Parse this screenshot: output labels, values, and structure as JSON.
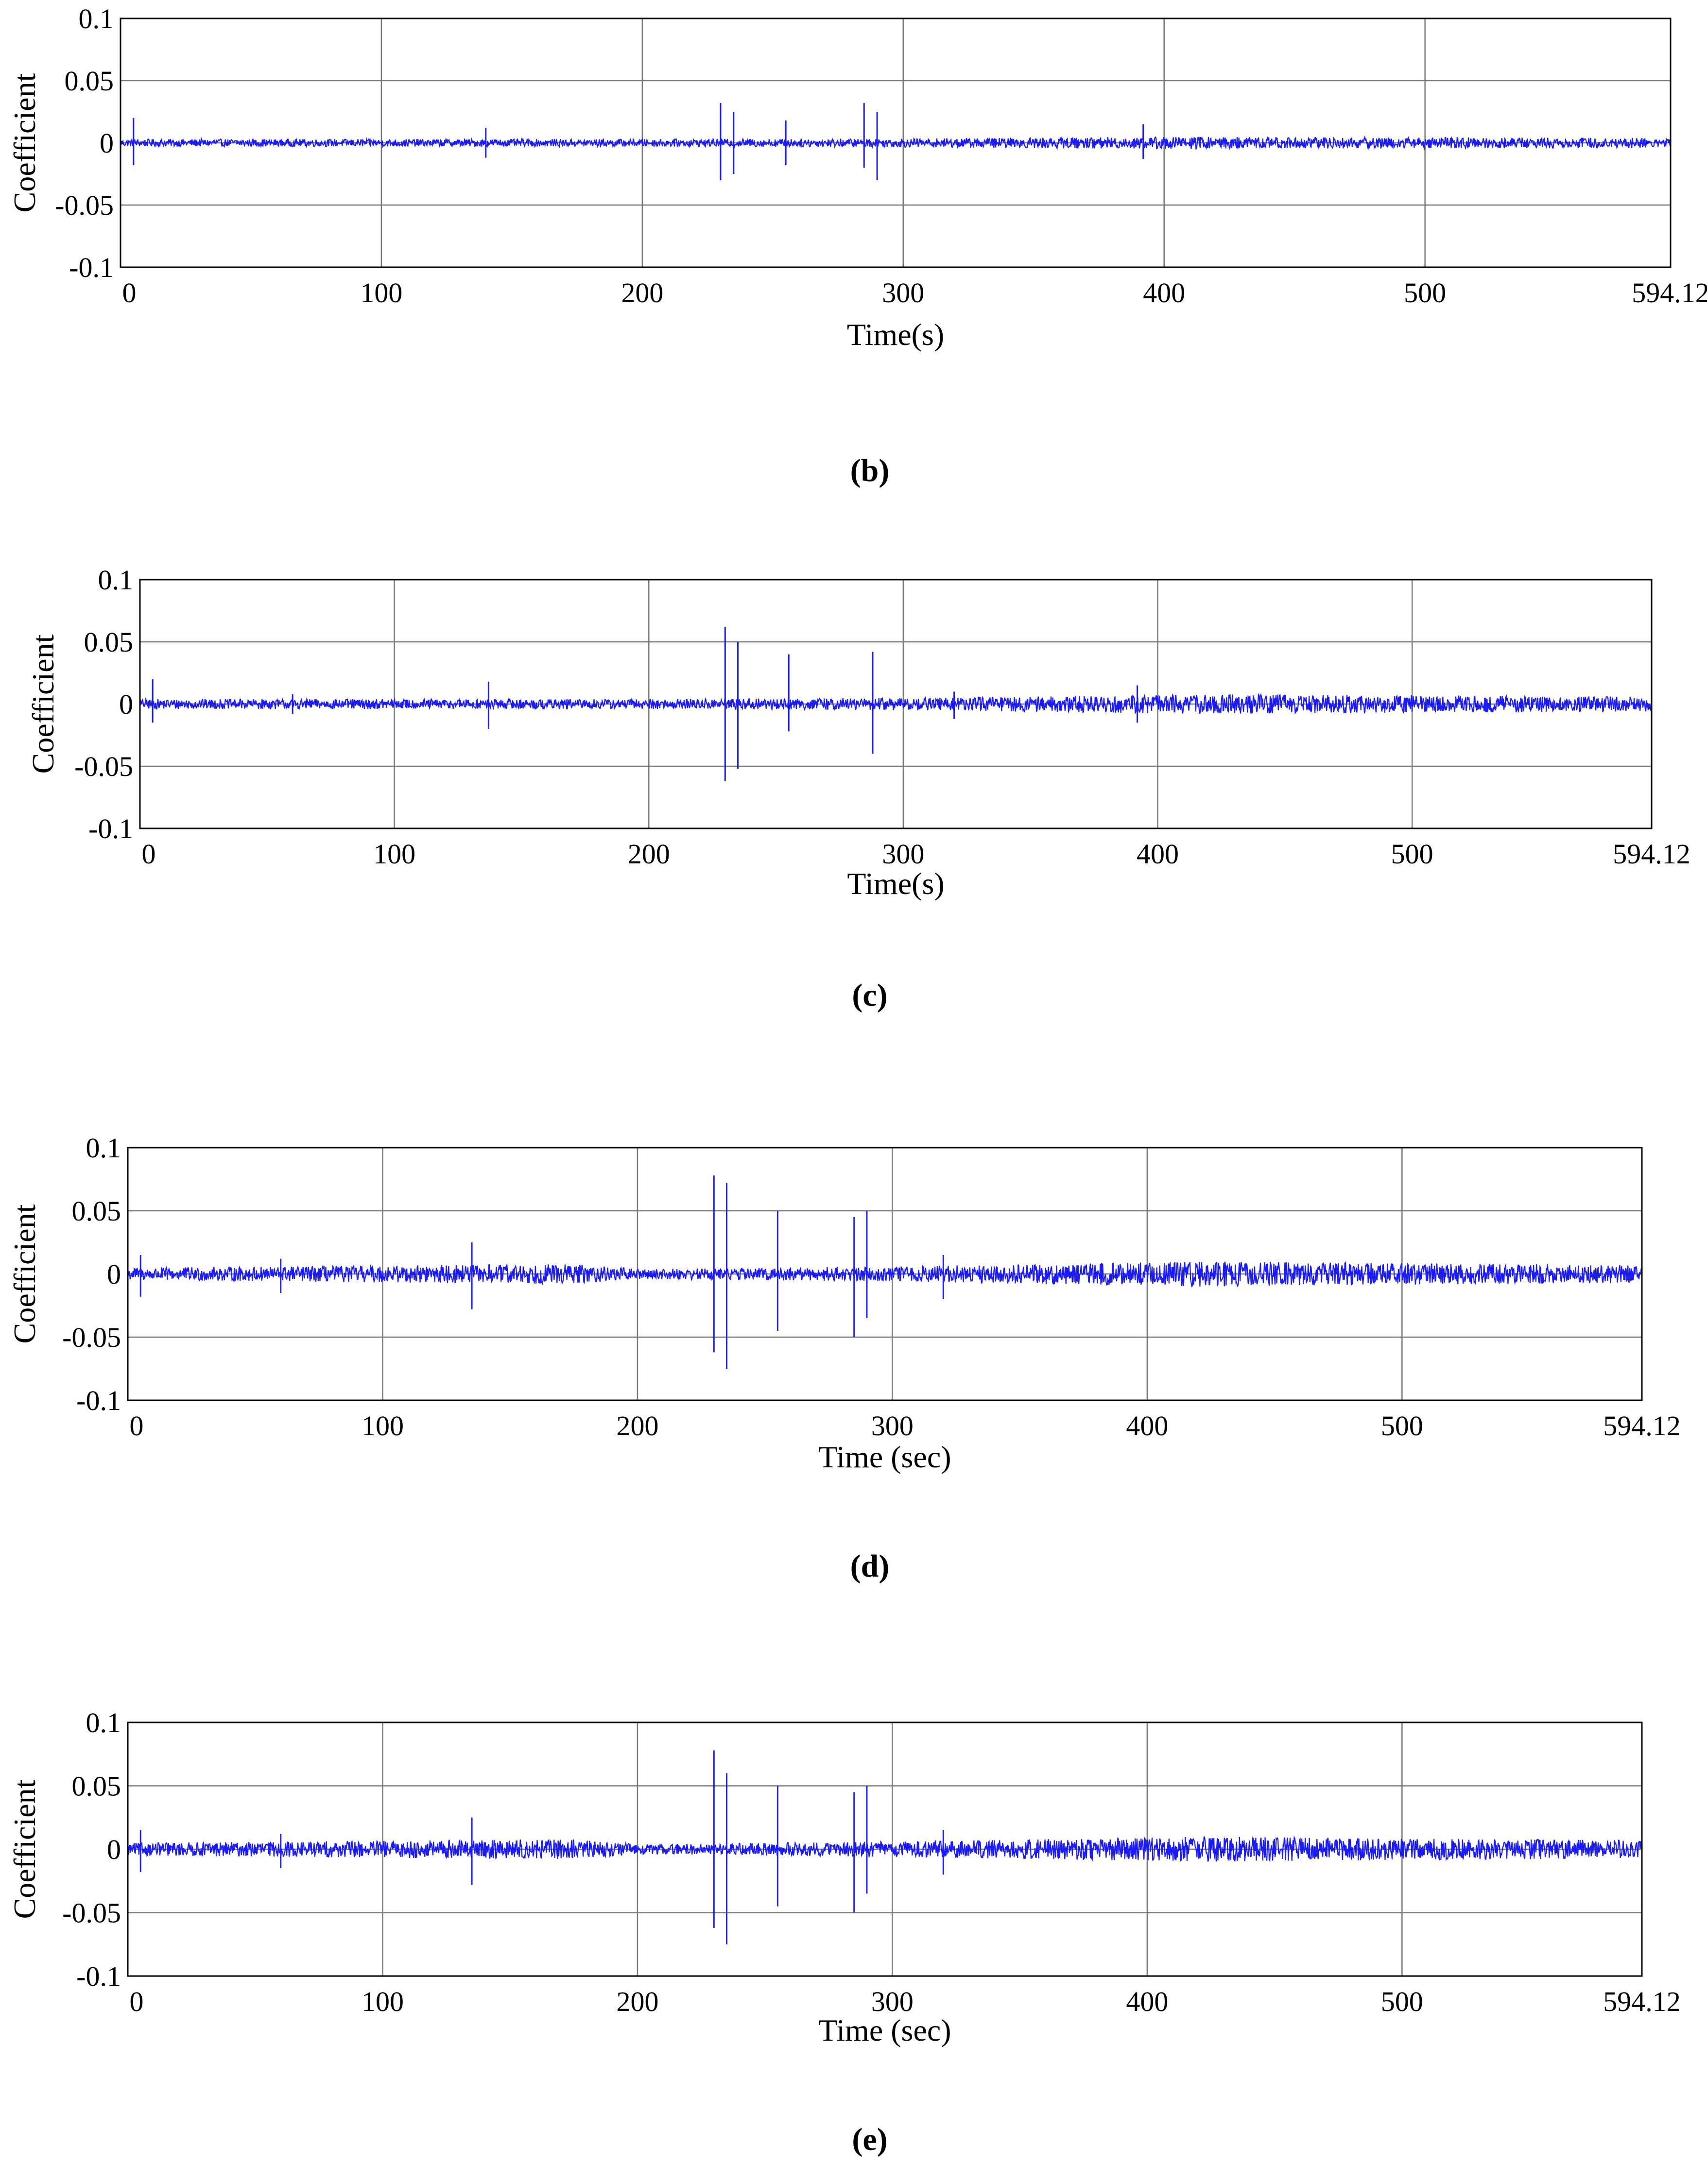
{
  "chart_data": [
    {
      "type": "line",
      "caption": "(b)",
      "xlabel": "Time(s)",
      "ylabel": "Coefficient",
      "xlim": [
        0,
        594.12
      ],
      "ylim": [
        -0.1,
        0.1
      ],
      "x_ticks": [
        "0",
        "100",
        "200",
        "300",
        "400",
        "500",
        "594.12"
      ],
      "y_ticks": [
        "0.1",
        "0.05",
        "0",
        "-0.05",
        "-0.1"
      ],
      "grid": true,
      "series_color": "#1a1aff",
      "noise_envelope": [
        [
          0,
          0.003
        ],
        [
          200,
          0.003
        ],
        [
          300,
          0.0035
        ],
        [
          400,
          0.005
        ],
        [
          594.12,
          0.004
        ]
      ],
      "spikes": [
        [
          5,
          0.02,
          -0.018
        ],
        [
          140,
          0.012,
          -0.012
        ],
        [
          230,
          0.032,
          -0.03
        ],
        [
          235,
          0.025,
          -0.025
        ],
        [
          255,
          0.018,
          -0.018
        ],
        [
          285,
          0.032,
          -0.02
        ],
        [
          290,
          0.025,
          -0.03
        ],
        [
          392,
          0.015,
          -0.013
        ]
      ]
    },
    {
      "type": "line",
      "caption": "(c)",
      "xlabel": "Time(s)",
      "ylabel": "Coefficient",
      "xlim": [
        0,
        594.12
      ],
      "ylim": [
        -0.1,
        0.1
      ],
      "x_ticks": [
        "0",
        "100",
        "200",
        "300",
        "400",
        "500",
        "594.12"
      ],
      "y_ticks": [
        "0.1",
        "0.05",
        "0",
        "-0.05",
        "-0.1"
      ],
      "grid": true,
      "series_color": "#1a1aff",
      "noise_envelope": [
        [
          0,
          0.004
        ],
        [
          200,
          0.004
        ],
        [
          300,
          0.005
        ],
        [
          420,
          0.008
        ],
        [
          594.12,
          0.006
        ]
      ],
      "spikes": [
        [
          5,
          0.02,
          -0.015
        ],
        [
          60,
          0.008,
          -0.008
        ],
        [
          137,
          0.018,
          -0.02
        ],
        [
          230,
          0.062,
          -0.062
        ],
        [
          235,
          0.05,
          -0.052
        ],
        [
          255,
          0.04,
          -0.022
        ],
        [
          288,
          0.042,
          -0.04
        ],
        [
          320,
          0.01,
          -0.012
        ],
        [
          392,
          0.015,
          -0.015
        ]
      ]
    },
    {
      "type": "line",
      "caption": "(d)",
      "xlabel": "Time (sec)",
      "ylabel": "Coefficient",
      "xlim": [
        0,
        594.12
      ],
      "ylim": [
        -0.1,
        0.1
      ],
      "x_ticks": [
        "0",
        "100",
        "200",
        "300",
        "400",
        "500",
        "594.12"
      ],
      "y_ticks": [
        "0.1",
        "0.05",
        "0",
        "-0.05",
        "-0.1"
      ],
      "grid": true,
      "series_color": "#1a1aff",
      "noise_envelope": [
        [
          0,
          0.005
        ],
        [
          175,
          0.008
        ],
        [
          200,
          0.004
        ],
        [
          300,
          0.006
        ],
        [
          420,
          0.01
        ],
        [
          594.12,
          0.007
        ]
      ],
      "spikes": [
        [
          5,
          0.015,
          -0.018
        ],
        [
          60,
          0.012,
          -0.015
        ],
        [
          135,
          0.025,
          -0.028
        ],
        [
          230,
          0.078,
          -0.062
        ],
        [
          235,
          0.072,
          -0.075
        ],
        [
          255,
          0.05,
          -0.045
        ],
        [
          285,
          0.045,
          -0.05
        ],
        [
          290,
          0.05,
          -0.035
        ],
        [
          320,
          0.015,
          -0.02
        ]
      ]
    },
    {
      "type": "line",
      "caption": "(e)",
      "xlabel": "Time (sec)",
      "ylabel": "Coefficient",
      "xlim": [
        0,
        594.12
      ],
      "ylim": [
        -0.1,
        0.1
      ],
      "x_ticks": [
        "0",
        "100",
        "200",
        "300",
        "400",
        "500",
        "594.12"
      ],
      "y_ticks": [
        "0.1",
        "0.05",
        "0",
        "-0.05",
        "-0.1"
      ],
      "grid": true,
      "series_color": "#1a1aff",
      "noise_envelope": [
        [
          0,
          0.005
        ],
        [
          175,
          0.008
        ],
        [
          200,
          0.004
        ],
        [
          300,
          0.006
        ],
        [
          420,
          0.01
        ],
        [
          594.12,
          0.007
        ]
      ],
      "spikes": [
        [
          5,
          0.015,
          -0.018
        ],
        [
          60,
          0.012,
          -0.015
        ],
        [
          135,
          0.025,
          -0.028
        ],
        [
          230,
          0.078,
          -0.062
        ],
        [
          235,
          0.06,
          -0.075
        ],
        [
          255,
          0.05,
          -0.045
        ],
        [
          285,
          0.045,
          -0.05
        ],
        [
          290,
          0.05,
          -0.035
        ],
        [
          320,
          0.015,
          -0.02
        ]
      ]
    }
  ]
}
